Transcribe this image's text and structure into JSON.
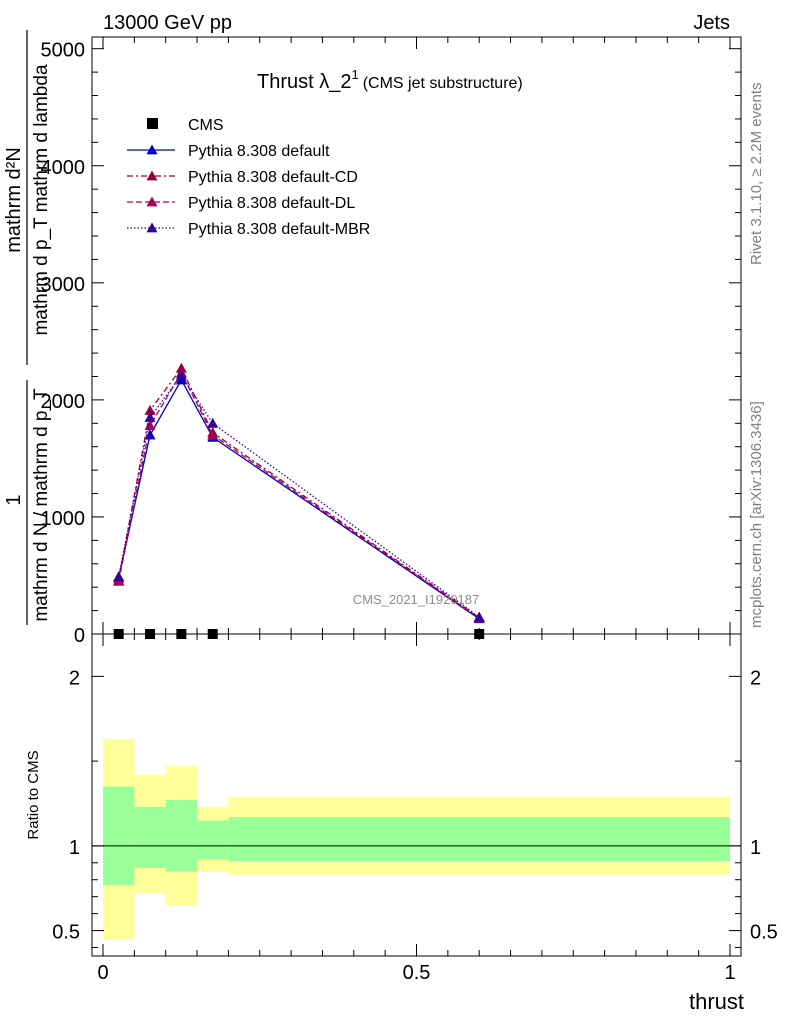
{
  "header": {
    "left": "13000 GeV pp",
    "right": "Jets"
  },
  "title": {
    "main": "Thrust λ_2",
    "sup": "1",
    "sub": "(CMS jet substructure)"
  },
  "side_labels": {
    "right_top": "Rivet 3.1.10, ≥ 2.2M events",
    "right_bottom": "mcplots.cern.ch [arXiv:1306.3436]"
  },
  "watermark": "CMS_2021_I1920187",
  "ylabel_main": {
    "numerator": "mathrm d²N",
    "denominator": "mathrm d p_T mathrm d lambda",
    "prefix_num": "1",
    "prefix_den": "mathrm d N / mathrm d p_T"
  },
  "colors": {
    "default": "#0000cc",
    "cd": "#990033",
    "dl": "#aa0055",
    "mbr": "#330099",
    "band_inner": "#99ff99",
    "band_outer": "#ffff99"
  },
  "chart_data": [
    {
      "type": "line",
      "panel": "main",
      "xlim": [
        0,
        1
      ],
      "ylim": [
        0,
        5100
      ],
      "yticks": [
        0,
        1000,
        2000,
        3000,
        4000,
        5000
      ],
      "ytick_labels": [
        "0",
        "1000",
        "2000",
        "3000",
        "4000",
        "5000"
      ],
      "legend_position": "top-left",
      "series": [
        {
          "name": "CMS",
          "marker": "square",
          "x": [
            0.025,
            0.075,
            0.125,
            0.175,
            0.6
          ],
          "y": [
            0,
            0,
            0,
            0,
            0
          ]
        },
        {
          "name": "Pythia 8.308 default",
          "style": "solid",
          "x": [
            0.025,
            0.075,
            0.125,
            0.175,
            0.6
          ],
          "y": [
            480,
            1700,
            2170,
            1680,
            130
          ]
        },
        {
          "name": "Pythia 8.308 default-CD",
          "style": "dashdot",
          "x": [
            0.025,
            0.075,
            0.125,
            0.175,
            0.6
          ],
          "y": [
            460,
            1910,
            2270,
            1720,
            140
          ]
        },
        {
          "name": "Pythia 8.308 default-DL",
          "style": "dashed",
          "x": [
            0.025,
            0.075,
            0.125,
            0.175,
            0.6
          ],
          "y": [
            450,
            1780,
            2230,
            1700,
            135
          ]
        },
        {
          "name": "Pythia 8.308 default-MBR",
          "style": "dotted",
          "x": [
            0.025,
            0.075,
            0.125,
            0.175,
            0.6
          ],
          "y": [
            490,
            1850,
            2210,
            1800,
            145
          ]
        }
      ]
    },
    {
      "type": "area",
      "panel": "ratio",
      "ylabel": "Ratio to CMS",
      "xlabel": "thrust",
      "xlim": [
        0,
        1
      ],
      "ylim": [
        0.35,
        2.25
      ],
      "xticks": [
        0,
        0.5,
        1
      ],
      "xtick_labels": [
        "0",
        "0.5",
        "1"
      ],
      "yticks": [
        0.5,
        1,
        2
      ],
      "ytick_labels": [
        "0.5",
        "1",
        "2"
      ],
      "bins": [
        [
          0,
          0.05
        ],
        [
          0.05,
          0.1
        ],
        [
          0.1,
          0.15
        ],
        [
          0.15,
          0.2
        ],
        [
          0.2,
          1.0
        ]
      ],
      "inner_band": [
        [
          0.77,
          1.35
        ],
        [
          0.87,
          1.23
        ],
        [
          0.85,
          1.27
        ],
        [
          0.92,
          1.15
        ],
        [
          0.91,
          1.17
        ]
      ],
      "outer_band": [
        [
          0.45,
          1.63
        ],
        [
          0.72,
          1.42
        ],
        [
          0.65,
          1.47
        ],
        [
          0.85,
          1.23
        ],
        [
          0.83,
          1.29
        ]
      ],
      "reference": 1
    }
  ]
}
